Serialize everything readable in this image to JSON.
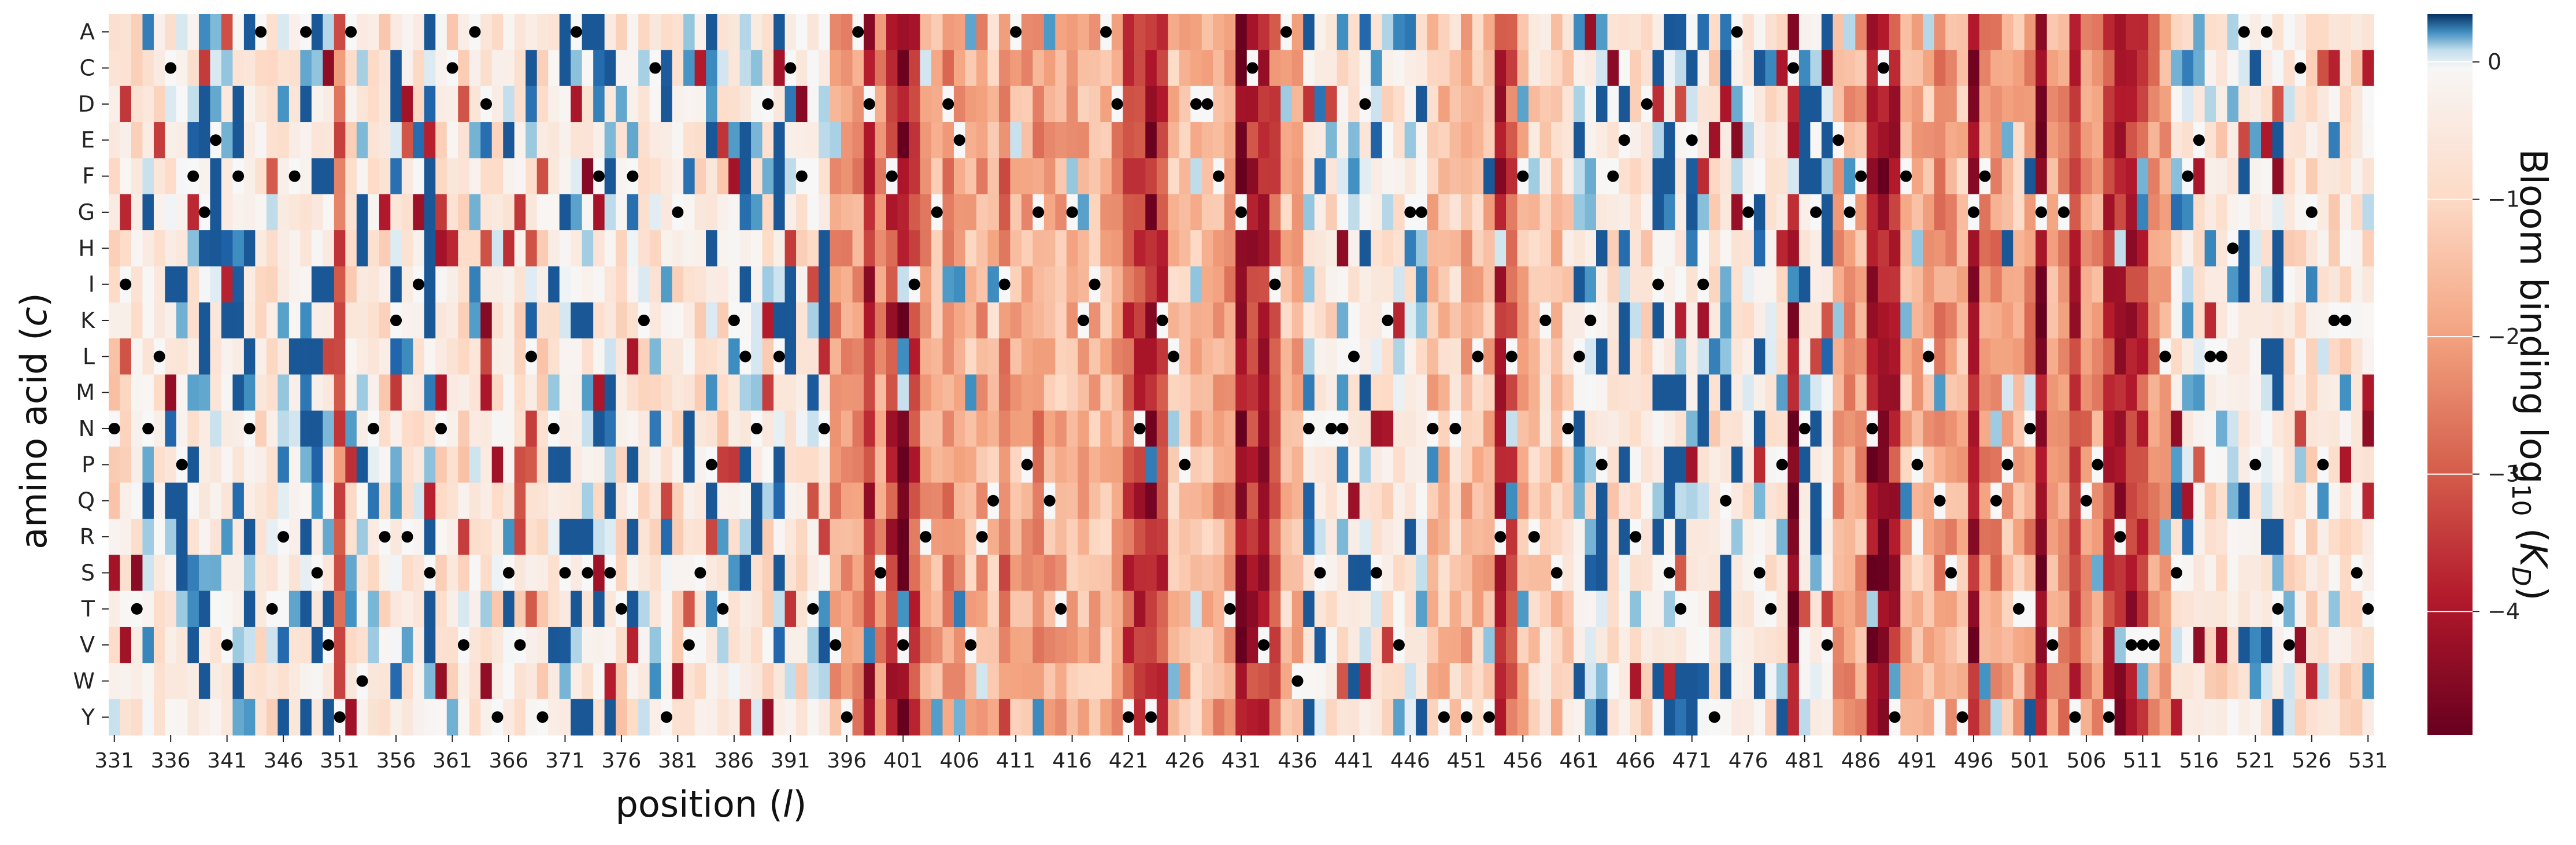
{
  "chart_data": {
    "type": "heatmap",
    "xlabel": "position (l)",
    "ylabel": "amino acid (c)",
    "colorbar_label": "Bloom binding log10 (KD)",
    "rows": [
      "A",
      "C",
      "D",
      "E",
      "F",
      "G",
      "H",
      "I",
      "K",
      "L",
      "M",
      "N",
      "P",
      "Q",
      "R",
      "S",
      "T",
      "V",
      "W",
      "Y"
    ],
    "x_start": 331,
    "x_end": 531,
    "x_step": 1,
    "x_ticks": [
      331,
      336,
      341,
      346,
      351,
      356,
      361,
      366,
      371,
      376,
      381,
      386,
      391,
      396,
      401,
      406,
      411,
      416,
      421,
      426,
      431,
      436,
      441,
      446,
      451,
      456,
      461,
      466,
      471,
      476,
      481,
      486,
      491,
      496,
      501,
      506,
      511,
      516,
      521,
      526,
      531
    ],
    "colorbar_ticks": [
      0,
      -1,
      -2,
      -3,
      -4
    ],
    "color_range": [
      -4.9,
      0.35
    ],
    "colormap": [
      "#67001f",
      "#b2182b",
      "#d6604d",
      "#f4a582",
      "#fddbc7",
      "#f7f7f7",
      "#d1e5f0",
      "#92c5de",
      "#4393c3",
      "#2166ac",
      "#053061"
    ],
    "wildtype_marker_color": "#000000",
    "wildtype": [
      {
        "pos": 331,
        "aa": "N"
      },
      {
        "pos": 332,
        "aa": "I"
      },
      {
        "pos": 333,
        "aa": "T"
      },
      {
        "pos": 334,
        "aa": "N"
      },
      {
        "pos": 335,
        "aa": "L"
      },
      {
        "pos": 336,
        "aa": "C"
      },
      {
        "pos": 337,
        "aa": "P"
      },
      {
        "pos": 338,
        "aa": "F"
      },
      {
        "pos": 339,
        "aa": "G"
      },
      {
        "pos": 340,
        "aa": "E"
      },
      {
        "pos": 341,
        "aa": "V"
      },
      {
        "pos": 342,
        "aa": "F"
      },
      {
        "pos": 343,
        "aa": "N"
      },
      {
        "pos": 344,
        "aa": "A"
      },
      {
        "pos": 345,
        "aa": "T"
      },
      {
        "pos": 346,
        "aa": "R"
      },
      {
        "pos": 347,
        "aa": "F"
      },
      {
        "pos": 348,
        "aa": "A"
      },
      {
        "pos": 349,
        "aa": "S"
      },
      {
        "pos": 350,
        "aa": "V"
      },
      {
        "pos": 351,
        "aa": "Y"
      },
      {
        "pos": 352,
        "aa": "A"
      },
      {
        "pos": 353,
        "aa": "W"
      },
      {
        "pos": 354,
        "aa": "N"
      },
      {
        "pos": 355,
        "aa": "R"
      },
      {
        "pos": 356,
        "aa": "K"
      },
      {
        "pos": 357,
        "aa": "R"
      },
      {
        "pos": 358,
        "aa": "I"
      },
      {
        "pos": 359,
        "aa": "S"
      },
      {
        "pos": 360,
        "aa": "N"
      },
      {
        "pos": 361,
        "aa": "C"
      },
      {
        "pos": 362,
        "aa": "V"
      },
      {
        "pos": 363,
        "aa": "A"
      },
      {
        "pos": 364,
        "aa": "D"
      },
      {
        "pos": 365,
        "aa": "Y"
      },
      {
        "pos": 366,
        "aa": "S"
      },
      {
        "pos": 367,
        "aa": "V"
      },
      {
        "pos": 368,
        "aa": "L"
      },
      {
        "pos": 369,
        "aa": "Y"
      },
      {
        "pos": 370,
        "aa": "N"
      },
      {
        "pos": 371,
        "aa": "S"
      },
      {
        "pos": 372,
        "aa": "A"
      },
      {
        "pos": 373,
        "aa": "S"
      },
      {
        "pos": 374,
        "aa": "F"
      },
      {
        "pos": 375,
        "aa": "S"
      },
      {
        "pos": 376,
        "aa": "T"
      },
      {
        "pos": 377,
        "aa": "F"
      },
      {
        "pos": 378,
        "aa": "K"
      },
      {
        "pos": 379,
        "aa": "C"
      },
      {
        "pos": 380,
        "aa": "Y"
      },
      {
        "pos": 381,
        "aa": "G"
      },
      {
        "pos": 382,
        "aa": "V"
      },
      {
        "pos": 383,
        "aa": "S"
      },
      {
        "pos": 384,
        "aa": "P"
      },
      {
        "pos": 385,
        "aa": "T"
      },
      {
        "pos": 386,
        "aa": "K"
      },
      {
        "pos": 387,
        "aa": "L"
      },
      {
        "pos": 388,
        "aa": "N"
      },
      {
        "pos": 389,
        "aa": "D"
      },
      {
        "pos": 390,
        "aa": "L"
      },
      {
        "pos": 391,
        "aa": "C"
      },
      {
        "pos": 392,
        "aa": "F"
      },
      {
        "pos": 393,
        "aa": "T"
      },
      {
        "pos": 394,
        "aa": "N"
      },
      {
        "pos": 395,
        "aa": "V"
      },
      {
        "pos": 396,
        "aa": "Y"
      },
      {
        "pos": 397,
        "aa": "A"
      },
      {
        "pos": 398,
        "aa": "D"
      },
      {
        "pos": 399,
        "aa": "S"
      },
      {
        "pos": 400,
        "aa": "F"
      },
      {
        "pos": 401,
        "aa": "V"
      },
      {
        "pos": 402,
        "aa": "I"
      },
      {
        "pos": 403,
        "aa": "R"
      },
      {
        "pos": 404,
        "aa": "G"
      },
      {
        "pos": 405,
        "aa": "D"
      },
      {
        "pos": 406,
        "aa": "E"
      },
      {
        "pos": 407,
        "aa": "V"
      },
      {
        "pos": 408,
        "aa": "R"
      },
      {
        "pos": 409,
        "aa": "Q"
      },
      {
        "pos": 410,
        "aa": "I"
      },
      {
        "pos": 411,
        "aa": "A"
      },
      {
        "pos": 412,
        "aa": "P"
      },
      {
        "pos": 413,
        "aa": "G"
      },
      {
        "pos": 414,
        "aa": "Q"
      },
      {
        "pos": 415,
        "aa": "T"
      },
      {
        "pos": 416,
        "aa": "G"
      },
      {
        "pos": 417,
        "aa": "K"
      },
      {
        "pos": 418,
        "aa": "I"
      },
      {
        "pos": 419,
        "aa": "A"
      },
      {
        "pos": 420,
        "aa": "D"
      },
      {
        "pos": 421,
        "aa": "Y"
      },
      {
        "pos": 422,
        "aa": "N"
      },
      {
        "pos": 423,
        "aa": "Y"
      },
      {
        "pos": 424,
        "aa": "K"
      },
      {
        "pos": 425,
        "aa": "L"
      },
      {
        "pos": 426,
        "aa": "P"
      },
      {
        "pos": 427,
        "aa": "D"
      },
      {
        "pos": 428,
        "aa": "D"
      },
      {
        "pos": 429,
        "aa": "F"
      },
      {
        "pos": 430,
        "aa": "T"
      },
      {
        "pos": 431,
        "aa": "G"
      },
      {
        "pos": 432,
        "aa": "C"
      },
      {
        "pos": 433,
        "aa": "V"
      },
      {
        "pos": 434,
        "aa": "I"
      },
      {
        "pos": 435,
        "aa": "A"
      },
      {
        "pos": 436,
        "aa": "W"
      },
      {
        "pos": 437,
        "aa": "N"
      },
      {
        "pos": 438,
        "aa": "S"
      },
      {
        "pos": 439,
        "aa": "N"
      },
      {
        "pos": 440,
        "aa": "N"
      },
      {
        "pos": 441,
        "aa": "L"
      },
      {
        "pos": 442,
        "aa": "D"
      },
      {
        "pos": 443,
        "aa": "S"
      },
      {
        "pos": 444,
        "aa": "K"
      },
      {
        "pos": 445,
        "aa": "V"
      },
      {
        "pos": 446,
        "aa": "G"
      },
      {
        "pos": 447,
        "aa": "G"
      },
      {
        "pos": 448,
        "aa": "N"
      },
      {
        "pos": 449,
        "aa": "Y"
      },
      {
        "pos": 450,
        "aa": "N"
      },
      {
        "pos": 451,
        "aa": "Y"
      },
      {
        "pos": 452,
        "aa": "L"
      },
      {
        "pos": 453,
        "aa": "Y"
      },
      {
        "pos": 454,
        "aa": "R"
      },
      {
        "pos": 455,
        "aa": "L"
      },
      {
        "pos": 456,
        "aa": "F"
      },
      {
        "pos": 457,
        "aa": "R"
      },
      {
        "pos": 458,
        "aa": "K"
      },
      {
        "pos": 459,
        "aa": "S"
      },
      {
        "pos": 460,
        "aa": "N"
      },
      {
        "pos": 461,
        "aa": "L"
      },
      {
        "pos": 462,
        "aa": "K"
      },
      {
        "pos": 463,
        "aa": "P"
      },
      {
        "pos": 464,
        "aa": "F"
      },
      {
        "pos": 465,
        "aa": "E"
      },
      {
        "pos": 466,
        "aa": "R"
      },
      {
        "pos": 467,
        "aa": "D"
      },
      {
        "pos": 468,
        "aa": "I"
      },
      {
        "pos": 469,
        "aa": "S"
      },
      {
        "pos": 470,
        "aa": "T"
      },
      {
        "pos": 471,
        "aa": "E"
      },
      {
        "pos": 472,
        "aa": "I"
      },
      {
        "pos": 473,
        "aa": "Y"
      },
      {
        "pos": 474,
        "aa": "Q"
      },
      {
        "pos": 475,
        "aa": "A"
      },
      {
        "pos": 476,
        "aa": "G"
      },
      {
        "pos": 477,
        "aa": "S"
      },
      {
        "pos": 478,
        "aa": "T"
      },
      {
        "pos": 479,
        "aa": "P"
      },
      {
        "pos": 480,
        "aa": "C"
      },
      {
        "pos": 481,
        "aa": "N"
      },
      {
        "pos": 482,
        "aa": "G"
      },
      {
        "pos": 483,
        "aa": "V"
      },
      {
        "pos": 484,
        "aa": "E"
      },
      {
        "pos": 485,
        "aa": "G"
      },
      {
        "pos": 486,
        "aa": "F"
      },
      {
        "pos": 487,
        "aa": "N"
      },
      {
        "pos": 488,
        "aa": "C"
      },
      {
        "pos": 489,
        "aa": "Y"
      },
      {
        "pos": 490,
        "aa": "F"
      },
      {
        "pos": 491,
        "aa": "P"
      },
      {
        "pos": 492,
        "aa": "L"
      },
      {
        "pos": 493,
        "aa": "Q"
      },
      {
        "pos": 494,
        "aa": "S"
      },
      {
        "pos": 495,
        "aa": "Y"
      },
      {
        "pos": 496,
        "aa": "G"
      },
      {
        "pos": 497,
        "aa": "F"
      },
      {
        "pos": 498,
        "aa": "Q"
      },
      {
        "pos": 499,
        "aa": "P"
      },
      {
        "pos": 500,
        "aa": "T"
      },
      {
        "pos": 501,
        "aa": "N"
      },
      {
        "pos": 502,
        "aa": "G"
      },
      {
        "pos": 503,
        "aa": "V"
      },
      {
        "pos": 504,
        "aa": "G"
      },
      {
        "pos": 505,
        "aa": "Y"
      },
      {
        "pos": 506,
        "aa": "Q"
      },
      {
        "pos": 507,
        "aa": "P"
      },
      {
        "pos": 508,
        "aa": "Y"
      },
      {
        "pos": 509,
        "aa": "R"
      },
      {
        "pos": 510,
        "aa": "V"
      },
      {
        "pos": 511,
        "aa": "V"
      },
      {
        "pos": 512,
        "aa": "V"
      },
      {
        "pos": 513,
        "aa": "L"
      },
      {
        "pos": 514,
        "aa": "S"
      },
      {
        "pos": 515,
        "aa": "F"
      },
      {
        "pos": 516,
        "aa": "E"
      },
      {
        "pos": 517,
        "aa": "L"
      },
      {
        "pos": 518,
        "aa": "L"
      },
      {
        "pos": 519,
        "aa": "H"
      },
      {
        "pos": 520,
        "aa": "A"
      },
      {
        "pos": 521,
        "aa": "P"
      },
      {
        "pos": 522,
        "aa": "A"
      },
      {
        "pos": 523,
        "aa": "T"
      },
      {
        "pos": 524,
        "aa": "V"
      },
      {
        "pos": 525,
        "aa": "C"
      },
      {
        "pos": 526,
        "aa": "G"
      },
      {
        "pos": 527,
        "aa": "P"
      },
      {
        "pos": 528,
        "aa": "K"
      },
      {
        "pos": 529,
        "aa": "K"
      },
      {
        "pos": 530,
        "aa": "S"
      },
      {
        "pos": 531,
        "aa": "T"
      }
    ],
    "strong_columns": [
      {
        "pos": 351,
        "level": -3.2
      },
      {
        "pos": 398,
        "level": -3.6
      },
      {
        "pos": 400,
        "level": -3.8
      },
      {
        "pos": 401,
        "level": -4.2
      },
      {
        "pos": 402,
        "level": -3.4
      },
      {
        "pos": 410,
        "level": -3.0
      },
      {
        "pos": 421,
        "level": -3.3
      },
      {
        "pos": 422,
        "level": -3.6
      },
      {
        "pos": 423,
        "level": -3.9
      },
      {
        "pos": 424,
        "level": -3.4
      },
      {
        "pos": 431,
        "level": -4.3
      },
      {
        "pos": 432,
        "level": -4.1
      },
      {
        "pos": 433,
        "level": -3.8
      },
      {
        "pos": 434,
        "level": -3.2
      },
      {
        "pos": 454,
        "level": -3.5
      },
      {
        "pos": 455,
        "level": -3.0
      },
      {
        "pos": 480,
        "level": -4.5
      },
      {
        "pos": 487,
        "level": -4.0
      },
      {
        "pos": 488,
        "level": -4.2
      },
      {
        "pos": 489,
        "level": -3.2
      },
      {
        "pos": 496,
        "level": -4.2
      },
      {
        "pos": 502,
        "level": -4.6
      },
      {
        "pos": 505,
        "level": -3.3
      },
      {
        "pos": 508,
        "level": -3.6
      },
      {
        "pos": 509,
        "level": -4.0
      },
      {
        "pos": 510,
        "level": -3.5
      },
      {
        "pos": 511,
        "level": -3.2
      }
    ],
    "medium_ranges": [
      {
        "from": 395,
        "to": 436,
        "level": -1.8
      },
      {
        "from": 448,
        "to": 460,
        "level": -1.3
      },
      {
        "from": 484,
        "to": 513,
        "level": -1.9
      }
    ],
    "blue_cells": [
      {
        "pos": 414,
        "aa": "A",
        "value": 0.2
      },
      {
        "pos": 366,
        "aa": "A",
        "value": -0.1
      },
      {
        "pos": 453,
        "aa": "F",
        "value": 0.3
      },
      {
        "pos": 501,
        "aa": "F",
        "value": 0.3
      },
      {
        "pos": 493,
        "aa": "M",
        "value": 0.2
      },
      {
        "pos": 385,
        "aa": "R",
        "value": 0.2
      },
      {
        "pos": 499,
        "aa": "H",
        "value": 0.3
      },
      {
        "pos": 501,
        "aa": "Y",
        "value": 0.3
      },
      {
        "pos": 498,
        "aa": "Y",
        "value": 0.1
      },
      {
        "pos": 492,
        "aa": "A",
        "value": 0.1
      },
      {
        "pos": 491,
        "aa": "R",
        "value": 0.0
      },
      {
        "pos": 366,
        "aa": "W",
        "value": 0.0
      },
      {
        "pos": 501,
        "aa": "T",
        "value": 0.0
      },
      {
        "pos": 493,
        "aa": "Y",
        "value": 0.0
      }
    ]
  }
}
